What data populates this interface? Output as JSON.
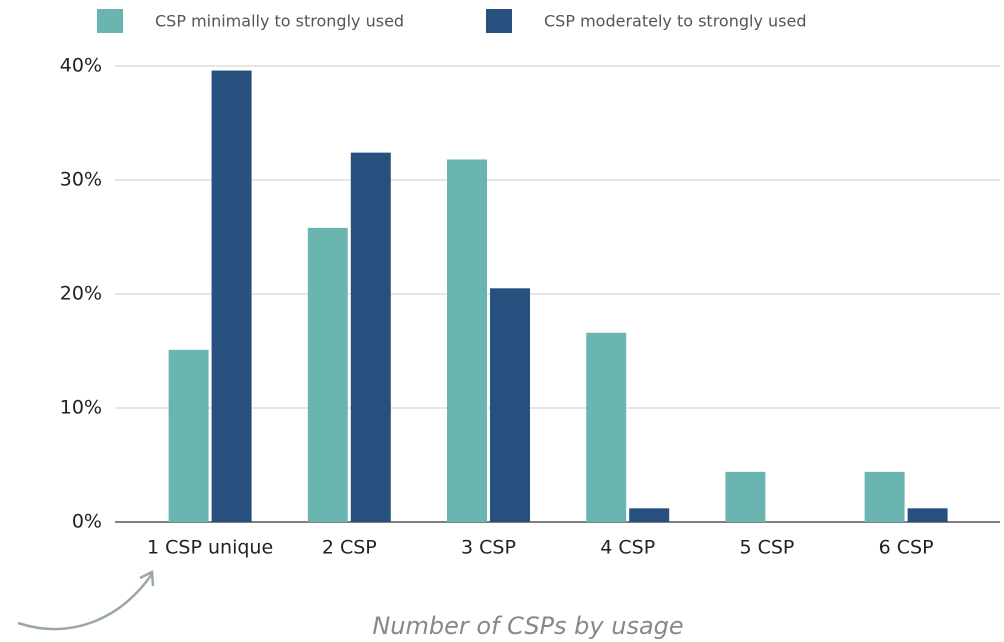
{
  "chart_data": {
    "type": "bar",
    "categories": [
      "1 CSP unique",
      "2 CSP",
      "3 CSP",
      "4 CSP",
      "5 CSP",
      "6 CSP"
    ],
    "series": [
      {
        "name": "CSP minimally to strongly used",
        "color": "#6bb5b1",
        "values": [
          15.1,
          25.8,
          31.8,
          16.6,
          4.4,
          4.4
        ]
      },
      {
        "name": "CSP moderately to strongly used",
        "color": "#27507e",
        "values": [
          39.6,
          32.4,
          20.5,
          1.2,
          0,
          1.2
        ]
      }
    ],
    "x_label": "Number of CSPs by usage",
    "ylim": [
      0,
      40
    ],
    "yticks": [
      {
        "value": 0,
        "label": "0%"
      },
      {
        "value": 10,
        "label": "10%"
      },
      {
        "value": 20,
        "label": "20%"
      },
      {
        "value": 30,
        "label": "30%"
      },
      {
        "value": 40,
        "label": "40%"
      }
    ],
    "grid": true
  }
}
